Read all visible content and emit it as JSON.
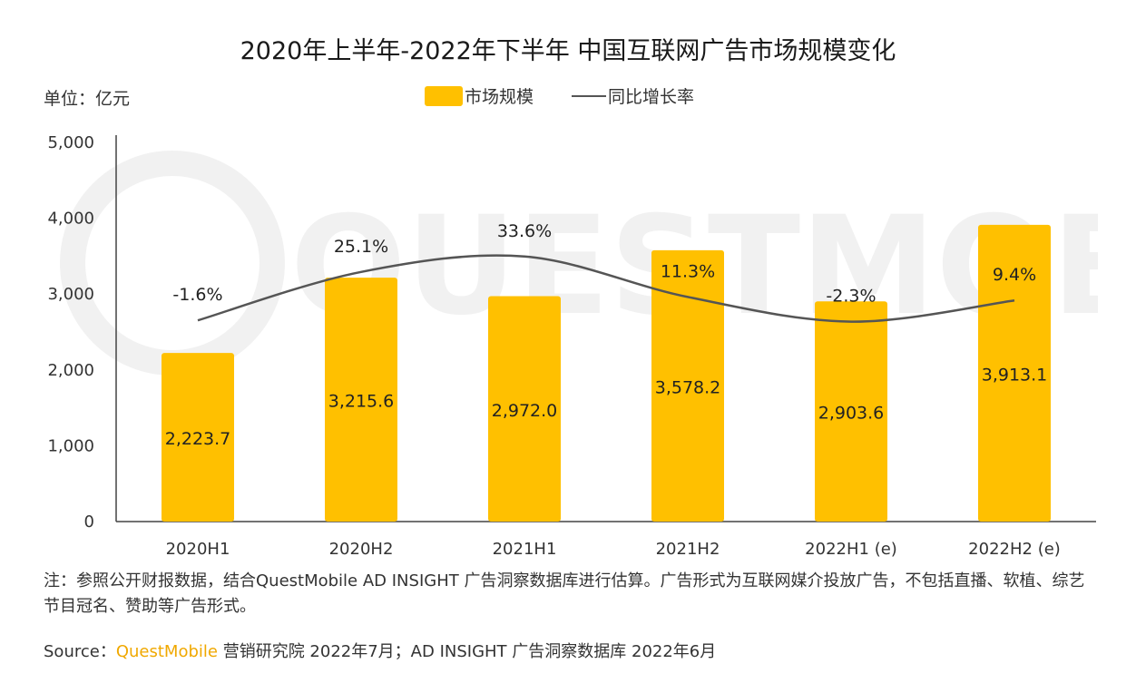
{
  "title": "2020年上半年-2022年下半年 中国互联网广告市场规模变化",
  "unit_label": "单位：亿元",
  "legend": {
    "bar_label": "市场规模",
    "line_label": "同比增长率"
  },
  "watermark_text": "QUESTMOBILE",
  "note_text": "注：参照公开财报数据，结合QuestMobile AD INSIGHT 广告洞察数据库进行估算。广告形式为互联网媒介投放广告，不包括直播、软植、综艺节目冠名、赞助等广告形式。",
  "source": {
    "prefix": "Source：",
    "brand": "QuestMobile",
    "rest": " 营销研究院 2022年7月；AD INSIGHT 广告洞察数据库 2022年6月"
  },
  "colors": {
    "bar": "#FFC000",
    "line": "#555555",
    "axis": "#444444"
  },
  "chart_data": {
    "type": "bar",
    "categories": [
      "2020H1",
      "2020H2",
      "2021H1",
      "2021H2",
      "2022H1 (e)",
      "2022H2 (e)"
    ],
    "series": [
      {
        "name": "市场规模",
        "type": "bar",
        "values": [
          2223.7,
          3215.6,
          2972.0,
          3578.2,
          2903.6,
          3913.1
        ],
        "labels": [
          "2,223.7",
          "3,215.6",
          "2,972.0",
          "3,578.2",
          "2,903.6",
          "3,913.1"
        ]
      },
      {
        "name": "同比增长率",
        "type": "line",
        "values": [
          -1.6,
          25.1,
          33.6,
          11.3,
          -2.3,
          9.4
        ],
        "labels": [
          "-1.6%",
          "25.1%",
          "33.6%",
          "11.3%",
          "-2.3%",
          "9.4%"
        ]
      }
    ],
    "ylim": [
      0,
      5000
    ],
    "yticks": [
      0,
      1000,
      2000,
      3000,
      4000,
      5000
    ],
    "ytick_labels": [
      "0",
      "1,000",
      "2,000",
      "3,000",
      "4,000",
      "5,000"
    ],
    "grid": false,
    "legend_position": "top-center"
  }
}
